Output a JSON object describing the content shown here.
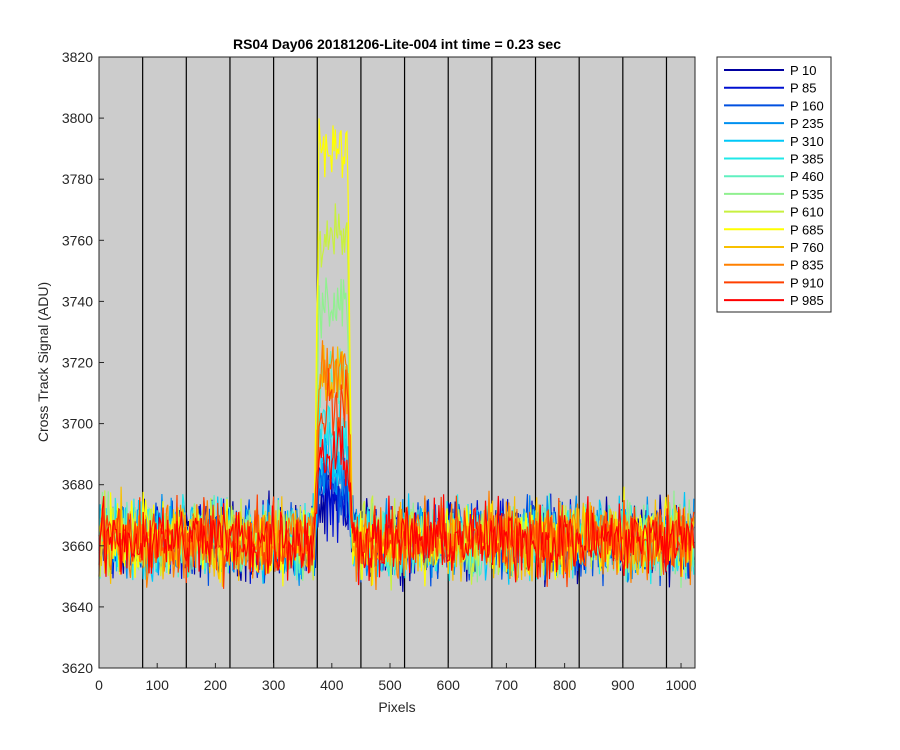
{
  "chart_data": {
    "type": "line",
    "title": "RS04 Day06 20181206-Lite-004 int time = 0.23 sec",
    "xlabel": "Pixels",
    "ylabel": "Cross Track Signal (ADU)",
    "xlim": [
      0,
      1024
    ],
    "ylim": [
      3620,
      3820
    ],
    "xticks": [
      0,
      100,
      200,
      300,
      400,
      500,
      600,
      700,
      800,
      900,
      1000
    ],
    "yticks": [
      3620,
      3640,
      3660,
      3680,
      3700,
      3720,
      3740,
      3760,
      3780,
      3800,
      3820
    ],
    "vertical_lines": [
      75,
      150,
      225,
      300,
      375,
      450,
      525,
      600,
      675,
      750,
      825,
      900,
      975
    ],
    "background": "#cccccc",
    "legend_placement": "outside-right",
    "baseline": 3662,
    "noise_amplitude": 6,
    "series": [
      {
        "name": "P 10",
        "color": "#0000a0",
        "peak": 3672
      },
      {
        "name": "P 85",
        "color": "#0010d0",
        "peak": 3676
      },
      {
        "name": "P 160",
        "color": "#0050e0",
        "peak": 3680
      },
      {
        "name": "P 235",
        "color": "#0090f0",
        "peak": 3684
      },
      {
        "name": "P 310",
        "color": "#00c8f8",
        "peak": 3690
      },
      {
        "name": "P 385",
        "color": "#20e8e8",
        "peak": 3698
      },
      {
        "name": "P 460",
        "color": "#60f0c0",
        "peak": 3715
      },
      {
        "name": "P 535",
        "color": "#90f090",
        "peak": 3740
      },
      {
        "name": "P 610",
        "color": "#c8f040",
        "peak": 3760
      },
      {
        "name": "P 685",
        "color": "#ffff00",
        "peak": 3790
      },
      {
        "name": "P 760",
        "color": "#f8c000",
        "peak": 3715
      },
      {
        "name": "P 835",
        "color": "#ff8000",
        "peak": 3718
      },
      {
        "name": "P 910",
        "color": "#ff4000",
        "peak": 3705
      },
      {
        "name": "P 985",
        "color": "#ff0000",
        "peak": 3690
      }
    ],
    "peak_range": [
      370,
      435
    ]
  }
}
